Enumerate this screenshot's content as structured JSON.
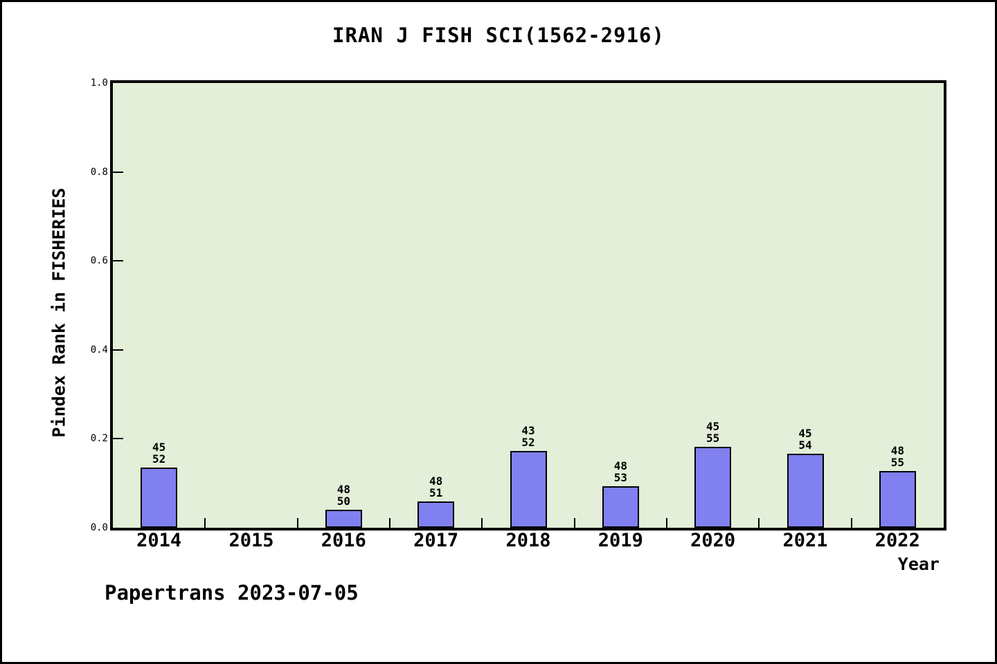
{
  "footer": "Papertrans 2023-07-05",
  "colors": {
    "bar_fill": "#8080f0",
    "bar_edge": "#000000",
    "plot_background": "#e3efd8",
    "page_background": "#ffffff",
    "axis": "#000000"
  },
  "chart_data": {
    "type": "bar",
    "title": "IRAN J FISH SCI(1562-2916)",
    "xlabel": "Year",
    "ylabel": "Pindex Rank in FISHERIES",
    "ylim": [
      0.0,
      1.0
    ],
    "yticks": [
      "0.0",
      "0.2",
      "0.4",
      "0.6",
      "0.8",
      "1.0"
    ],
    "grid": false,
    "legend_position": "none",
    "categories": [
      "2014",
      "2015",
      "2016",
      "2017",
      "2018",
      "2019",
      "2020",
      "2021",
      "2022"
    ],
    "values": [
      0.135,
      0,
      0.04,
      0.059,
      0.173,
      0.094,
      0.182,
      0.167,
      0.127
    ],
    "bar_labels": [
      {
        "rank": "45",
        "total": "52"
      },
      null,
      {
        "rank": "48",
        "total": "50"
      },
      {
        "rank": "48",
        "total": "51"
      },
      {
        "rank": "43",
        "total": "52"
      },
      {
        "rank": "48",
        "total": "53"
      },
      {
        "rank": "45",
        "total": "55"
      },
      {
        "rank": "45",
        "total": "54"
      },
      {
        "rank": "48",
        "total": "55"
      }
    ]
  }
}
